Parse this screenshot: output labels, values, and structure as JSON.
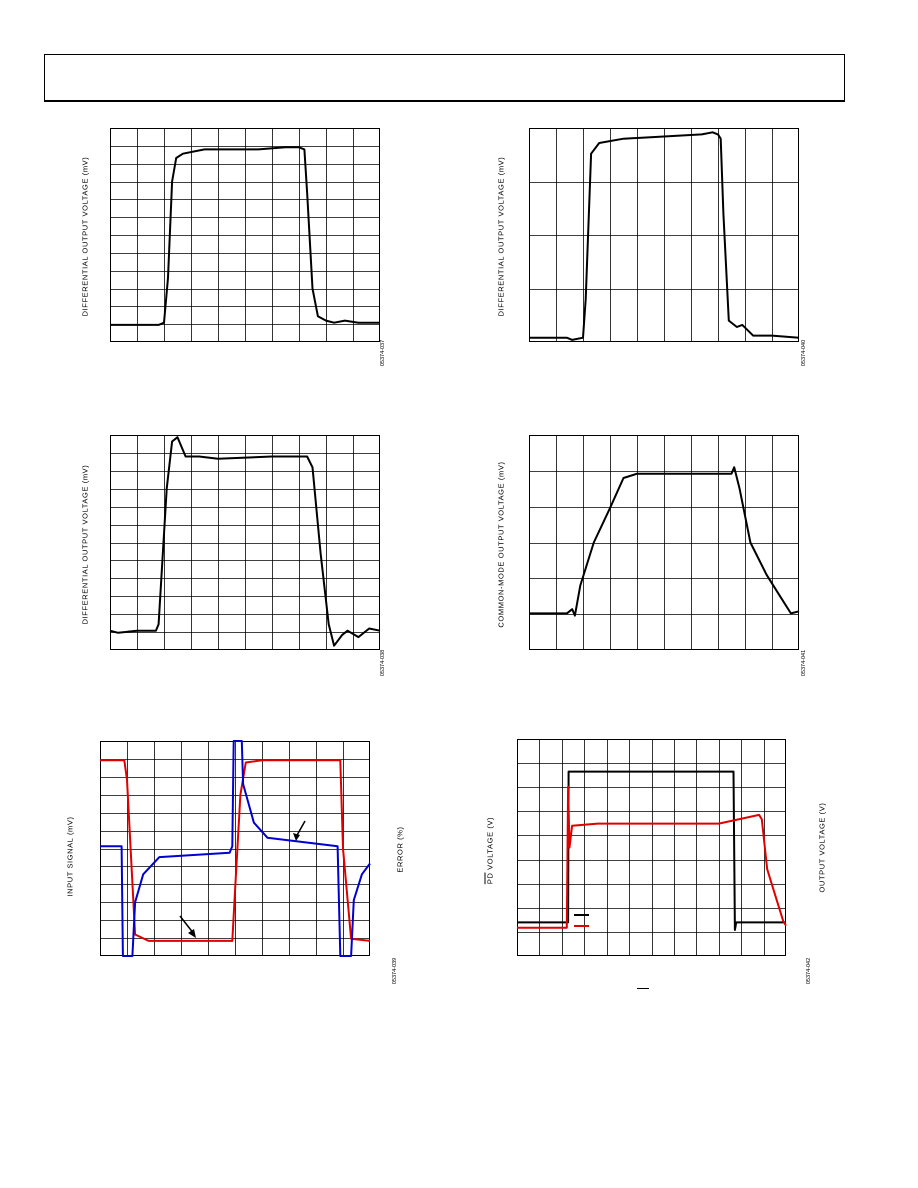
{
  "charts": {
    "c1": {
      "ylabel": "DIFFERENTIAL OUTPUT VOLTAGE (mV)",
      "fig": "05374-037"
    },
    "c2": {
      "ylabel": "DIFFERENTIAL OUTPUT VOLTAGE (mV)",
      "fig": "05374-040"
    },
    "c3": {
      "ylabel": "DIFFERENTIAL OUTPUT VOLTAGE (mV)",
      "fig": "05374-038"
    },
    "c4": {
      "ylabel": "COMMON-MODE OUTPUT VOLTAGE (mV)",
      "fig": "05374-041"
    },
    "c5": {
      "ylabel_left": "INPUT SIGNAL (mV)",
      "ylabel_right": "ERROR (%)",
      "fig": "05374-039"
    },
    "c6": {
      "ylabel_left_pd": "PD",
      "ylabel_left_rest": " VOLTAGE (V)",
      "ylabel_right": "OUTPUT VOLTAGE (V)",
      "fig": "05374-042"
    }
  },
  "colors": {
    "black": "#000000",
    "red": "#e00000",
    "blue": "#0000d0",
    "grid": "#000000"
  },
  "chart_data": [
    {
      "type": "line",
      "grid": true,
      "x_divisions": 10,
      "y_divisions": 12,
      "series": [
        {
          "color": "#000000",
          "points": [
            [
              0,
              0.08
            ],
            [
              1.8,
              0.08
            ],
            [
              2.0,
              0.09
            ],
            [
              2.15,
              0.3
            ],
            [
              2.3,
              0.75
            ],
            [
              2.45,
              0.86
            ],
            [
              2.7,
              0.88
            ],
            [
              3.5,
              0.9
            ],
            [
              5.5,
              0.9
            ],
            [
              6.5,
              0.91
            ],
            [
              7.0,
              0.91
            ],
            [
              7.2,
              0.9
            ],
            [
              7.3,
              0.7
            ],
            [
              7.5,
              0.25
            ],
            [
              7.7,
              0.12
            ],
            [
              8.0,
              0.1
            ],
            [
              8.3,
              0.09
            ],
            [
              8.7,
              0.1
            ],
            [
              9.2,
              0.09
            ],
            [
              10,
              0.09
            ]
          ]
        }
      ]
    },
    {
      "type": "line",
      "grid": true,
      "x_divisions": 10,
      "y_divisions": 4,
      "series": [
        {
          "color": "#000000",
          "points": [
            [
              0,
              0.02
            ],
            [
              1.4,
              0.02
            ],
            [
              1.6,
              0.01
            ],
            [
              2.0,
              0.02
            ],
            [
              2.1,
              0.2
            ],
            [
              2.3,
              0.88
            ],
            [
              2.6,
              0.93
            ],
            [
              3.5,
              0.95
            ],
            [
              6.4,
              0.97
            ],
            [
              6.8,
              0.98
            ],
            [
              7.0,
              0.97
            ],
            [
              7.1,
              0.95
            ],
            [
              7.2,
              0.6
            ],
            [
              7.4,
              0.1
            ],
            [
              7.7,
              0.07
            ],
            [
              7.9,
              0.08
            ],
            [
              8.3,
              0.03
            ],
            [
              9.0,
              0.03
            ],
            [
              10,
              0.02
            ]
          ]
        }
      ]
    },
    {
      "type": "line",
      "grid": true,
      "x_divisions": 10,
      "y_divisions": 12,
      "series": [
        {
          "color": "#000000",
          "points": [
            [
              0,
              0.09
            ],
            [
              0.3,
              0.08
            ],
            [
              1.0,
              0.09
            ],
            [
              1.7,
              0.09
            ],
            [
              1.8,
              0.12
            ],
            [
              2.1,
              0.75
            ],
            [
              2.3,
              0.97
            ],
            [
              2.5,
              0.99
            ],
            [
              2.8,
              0.9
            ],
            [
              3.3,
              0.9
            ],
            [
              4.0,
              0.89
            ],
            [
              6.0,
              0.9
            ],
            [
              7.3,
              0.9
            ],
            [
              7.5,
              0.85
            ],
            [
              7.8,
              0.45
            ],
            [
              8.1,
              0.12
            ],
            [
              8.3,
              0.02
            ],
            [
              8.6,
              0.07
            ],
            [
              8.8,
              0.09
            ],
            [
              9.2,
              0.06
            ],
            [
              9.6,
              0.1
            ],
            [
              10,
              0.09
            ]
          ]
        }
      ]
    },
    {
      "type": "line",
      "grid": true,
      "x_divisions": 10,
      "y_divisions": 6,
      "series": [
        {
          "color": "#000000",
          "points": [
            [
              0,
              0.17
            ],
            [
              1.4,
              0.17
            ],
            [
              1.6,
              0.19
            ],
            [
              1.7,
              0.16
            ],
            [
              1.9,
              0.3
            ],
            [
              2.4,
              0.5
            ],
            [
              3.0,
              0.66
            ],
            [
              3.5,
              0.8
            ],
            [
              4.0,
              0.82
            ],
            [
              5.5,
              0.82
            ],
            [
              7.5,
              0.82
            ],
            [
              7.6,
              0.85
            ],
            [
              7.8,
              0.75
            ],
            [
              8.2,
              0.5
            ],
            [
              8.8,
              0.35
            ],
            [
              9.3,
              0.25
            ],
            [
              9.7,
              0.17
            ],
            [
              10,
              0.18
            ]
          ]
        }
      ]
    },
    {
      "type": "line",
      "grid": true,
      "x_divisions": 10,
      "y_divisions": 12,
      "series": [
        {
          "name": "",
          "color": "#e00000",
          "points": [
            [
              0,
              0.91
            ],
            [
              0.9,
              0.91
            ],
            [
              1.0,
              0.82
            ],
            [
              1.3,
              0.1
            ],
            [
              1.8,
              0.07
            ],
            [
              4.9,
              0.07
            ],
            [
              5.0,
              0.3
            ],
            [
              5.2,
              0.75
            ],
            [
              5.4,
              0.9
            ],
            [
              6.0,
              0.91
            ],
            [
              8.9,
              0.91
            ],
            [
              9.0,
              0.5
            ],
            [
              9.3,
              0.08
            ],
            [
              10,
              0.07
            ]
          ]
        },
        {
          "name": "",
          "color": "#0000d0",
          "points": [
            [
              0,
              0.51
            ],
            [
              0.8,
              0.51
            ],
            [
              0.85,
              0.0
            ],
            [
              1.2,
              0.0
            ],
            [
              1.3,
              0.25
            ],
            [
              1.6,
              0.38
            ],
            [
              2.2,
              0.46
            ],
            [
              4.8,
              0.48
            ],
            [
              4.9,
              0.51
            ],
            [
              4.95,
              1.0
            ],
            [
              5.25,
              1.0
            ],
            [
              5.3,
              0.8
            ],
            [
              5.7,
              0.62
            ],
            [
              6.2,
              0.55
            ],
            [
              8.8,
              0.51
            ],
            [
              8.9,
              0.0
            ],
            [
              9.3,
              0.0
            ],
            [
              9.4,
              0.26
            ],
            [
              9.7,
              0.38
            ],
            [
              10,
              0.43
            ]
          ]
        }
      ]
    },
    {
      "type": "line",
      "grid": true,
      "x_divisions": 12,
      "y_divisions": 9,
      "series": [
        {
          "name": "",
          "color": "#000000",
          "points": [
            [
              0,
              0.155
            ],
            [
              1.9,
              0.155
            ],
            [
              1.92,
              0.85
            ],
            [
              8.05,
              0.85
            ],
            [
              8.1,
              0.12
            ],
            [
              8.15,
              0.155
            ],
            [
              10,
              0.155
            ]
          ]
        },
        {
          "name": "",
          "color": "#e00000",
          "points": [
            [
              0,
              0.13
            ],
            [
              1.85,
              0.13
            ],
            [
              1.9,
              0.78
            ],
            [
              1.95,
              0.5
            ],
            [
              2.05,
              0.6
            ],
            [
              3.0,
              0.61
            ],
            [
              7.5,
              0.61
            ],
            [
              9.0,
              0.65
            ],
            [
              9.1,
              0.63
            ],
            [
              9.3,
              0.4
            ],
            [
              9.6,
              0.28
            ],
            [
              9.9,
              0.16
            ],
            [
              10,
              0.14
            ]
          ]
        }
      ]
    }
  ]
}
